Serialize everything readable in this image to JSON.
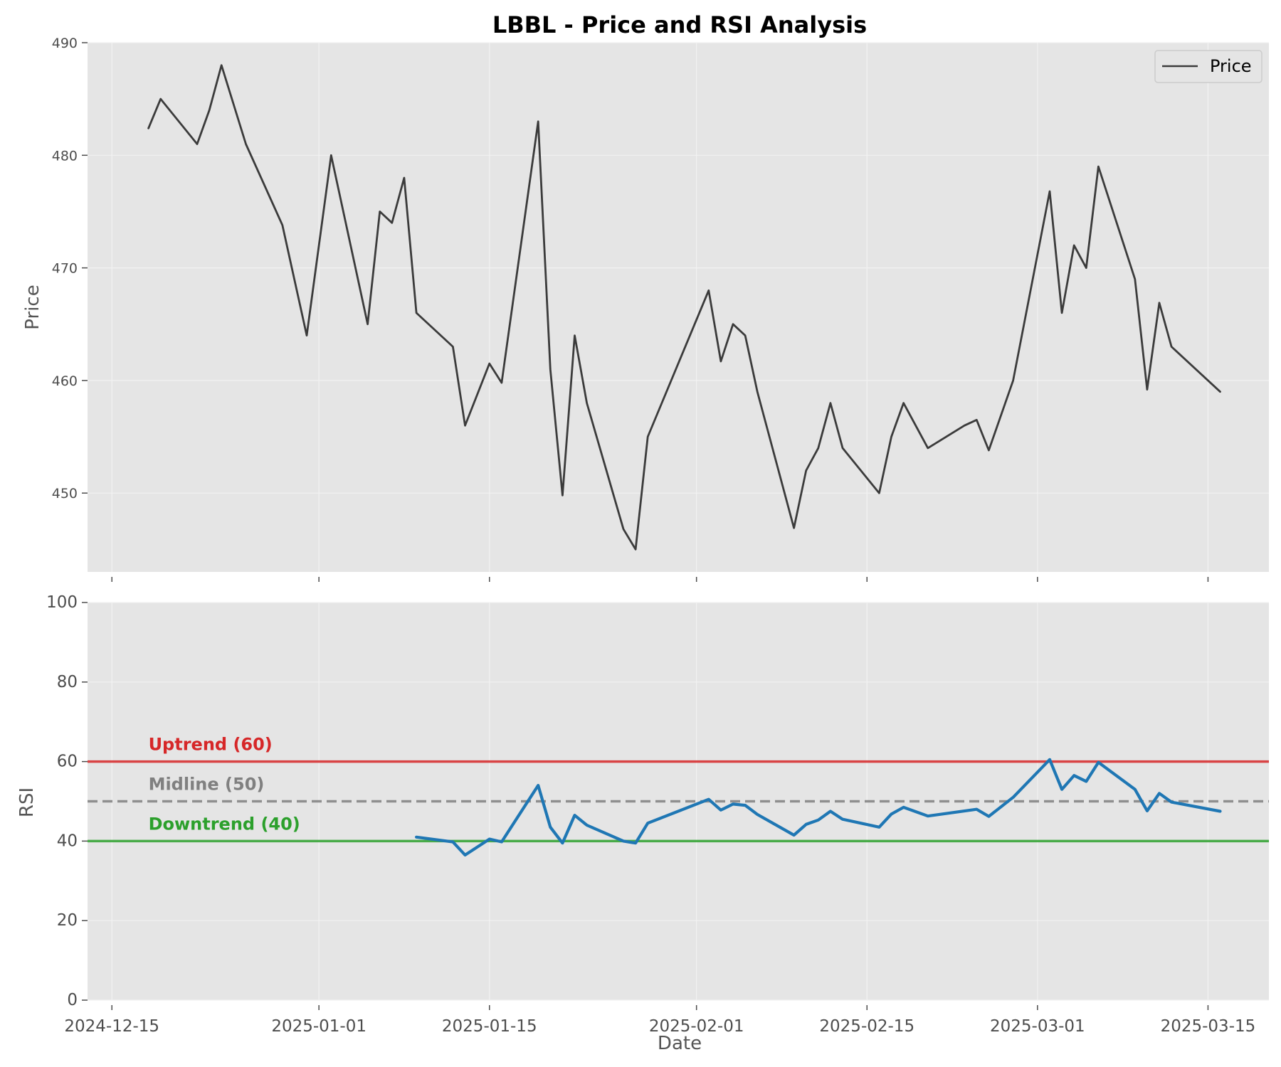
{
  "chart_data": {
    "type": "line",
    "title": "LBBL - Price and RSI Analysis",
    "xlabel": "Date",
    "x_ticks": [
      "2024-12-15",
      "2025-01-01",
      "2025-01-15",
      "2025-02-01",
      "2025-02-15",
      "2025-03-01",
      "2025-03-15"
    ],
    "xlim": [
      "2024-12-13",
      "2025-03-20"
    ],
    "grid": true,
    "panels": [
      {
        "id": "price",
        "ylabel": "Price",
        "ylim": [
          443,
          490
        ],
        "y_ticks": [
          450,
          460,
          470,
          480,
          490
        ],
        "legend": {
          "placement": "top-right",
          "entries": [
            "Price"
          ]
        },
        "series": [
          {
            "name": "Price",
            "color": "#3b3b3b",
            "points": [
              [
                "2024-12-18",
                482.4
              ],
              [
                "2024-12-19",
                485.0
              ],
              [
                "2024-12-22",
                481.0
              ],
              [
                "2024-12-23",
                484.0
              ],
              [
                "2024-12-24",
                488.0
              ],
              [
                "2024-12-26",
                481.0
              ],
              [
                "2024-12-29",
                473.8
              ],
              [
                "2024-12-31",
                464.0
              ],
              [
                "2025-01-02",
                480.0
              ],
              [
                "2025-01-05",
                465.0
              ],
              [
                "2025-01-06",
                475.0
              ],
              [
                "2025-01-07",
                474.0
              ],
              [
                "2025-01-08",
                478.0
              ],
              [
                "2025-01-09",
                466.0
              ],
              [
                "2025-01-12",
                463.0
              ],
              [
                "2025-01-13",
                456.0
              ],
              [
                "2025-01-15",
                461.5
              ],
              [
                "2025-01-16",
                459.8
              ],
              [
                "2025-01-19",
                483.0
              ],
              [
                "2025-01-20",
                461.0
              ],
              [
                "2025-01-21",
                449.8
              ],
              [
                "2025-01-22",
                464.0
              ],
              [
                "2025-01-23",
                458.0
              ],
              [
                "2025-01-26",
                446.8
              ],
              [
                "2025-01-27",
                445.0
              ],
              [
                "2025-01-28",
                455.0
              ],
              [
                "2025-02-02",
                468.0
              ],
              [
                "2025-02-03",
                461.7
              ],
              [
                "2025-02-04",
                465.0
              ],
              [
                "2025-02-05",
                464.0
              ],
              [
                "2025-02-06",
                459.0
              ],
              [
                "2025-02-09",
                446.9
              ],
              [
                "2025-02-10",
                452.0
              ],
              [
                "2025-02-11",
                454.0
              ],
              [
                "2025-02-12",
                458.0
              ],
              [
                "2025-02-13",
                454.0
              ],
              [
                "2025-02-16",
                450.0
              ],
              [
                "2025-02-17",
                455.0
              ],
              [
                "2025-02-18",
                458.0
              ],
              [
                "2025-02-20",
                454.0
              ],
              [
                "2025-02-23",
                456.0
              ],
              [
                "2025-02-24",
                456.5
              ],
              [
                "2025-02-25",
                453.8
              ],
              [
                "2025-02-27",
                460.0
              ],
              [
                "2025-03-02",
                476.8
              ],
              [
                "2025-03-03",
                466.0
              ],
              [
                "2025-03-04",
                472.0
              ],
              [
                "2025-03-05",
                470.0
              ],
              [
                "2025-03-06",
                479.0
              ],
              [
                "2025-03-09",
                469.0
              ],
              [
                "2025-03-10",
                459.2
              ],
              [
                "2025-03-11",
                466.9
              ],
              [
                "2025-03-12",
                463.0
              ],
              [
                "2025-03-16",
                459.0
              ]
            ]
          }
        ]
      },
      {
        "id": "rsi",
        "ylabel": "RSI",
        "ylim": [
          0,
          100
        ],
        "y_ticks": [
          0,
          20,
          40,
          60,
          80,
          100
        ],
        "reference_lines": [
          {
            "value": 60,
            "label": "Uptrend (60)",
            "color": "#d62728",
            "style": "solid"
          },
          {
            "value": 50,
            "label": "Midline (50)",
            "color": "#808080",
            "style": "dashed"
          },
          {
            "value": 40,
            "label": "Downtrend (40)",
            "color": "#2ca02c",
            "style": "solid"
          }
        ],
        "series": [
          {
            "name": "",
            "color": "#1f77b4",
            "points": [
              [
                "2025-01-09",
                41.0
              ],
              [
                "2025-01-12",
                39.8
              ],
              [
                "2025-01-13",
                36.5
              ],
              [
                "2025-01-15",
                40.5
              ],
              [
                "2025-01-16",
                39.8
              ],
              [
                "2025-01-19",
                54.0
              ],
              [
                "2025-01-20",
                43.5
              ],
              [
                "2025-01-21",
                39.5
              ],
              [
                "2025-01-22",
                46.5
              ],
              [
                "2025-01-23",
                44.0
              ],
              [
                "2025-01-26",
                40.0
              ],
              [
                "2025-01-27",
                39.5
              ],
              [
                "2025-01-28",
                44.5
              ],
              [
                "2025-02-02",
                50.5
              ],
              [
                "2025-02-03",
                47.8
              ],
              [
                "2025-02-04",
                49.3
              ],
              [
                "2025-02-05",
                49.0
              ],
              [
                "2025-02-06",
                46.7
              ],
              [
                "2025-02-09",
                41.5
              ],
              [
                "2025-02-10",
                44.2
              ],
              [
                "2025-02-11",
                45.3
              ],
              [
                "2025-02-12",
                47.5
              ],
              [
                "2025-02-13",
                45.5
              ],
              [
                "2025-02-16",
                43.5
              ],
              [
                "2025-02-17",
                46.8
              ],
              [
                "2025-02-18",
                48.5
              ],
              [
                "2025-02-20",
                46.3
              ],
              [
                "2025-02-24",
                48.0
              ],
              [
                "2025-02-25",
                46.2
              ],
              [
                "2025-02-27",
                51.0
              ],
              [
                "2025-03-02",
                60.5
              ],
              [
                "2025-03-03",
                53.0
              ],
              [
                "2025-03-04",
                56.5
              ],
              [
                "2025-03-05",
                55.0
              ],
              [
                "2025-03-06",
                59.8
              ],
              [
                "2025-03-09",
                53.0
              ],
              [
                "2025-03-10",
                47.6
              ],
              [
                "2025-03-11",
                52.0
              ],
              [
                "2025-03-12",
                49.8
              ],
              [
                "2025-03-16",
                47.5
              ]
            ]
          }
        ]
      }
    ]
  }
}
